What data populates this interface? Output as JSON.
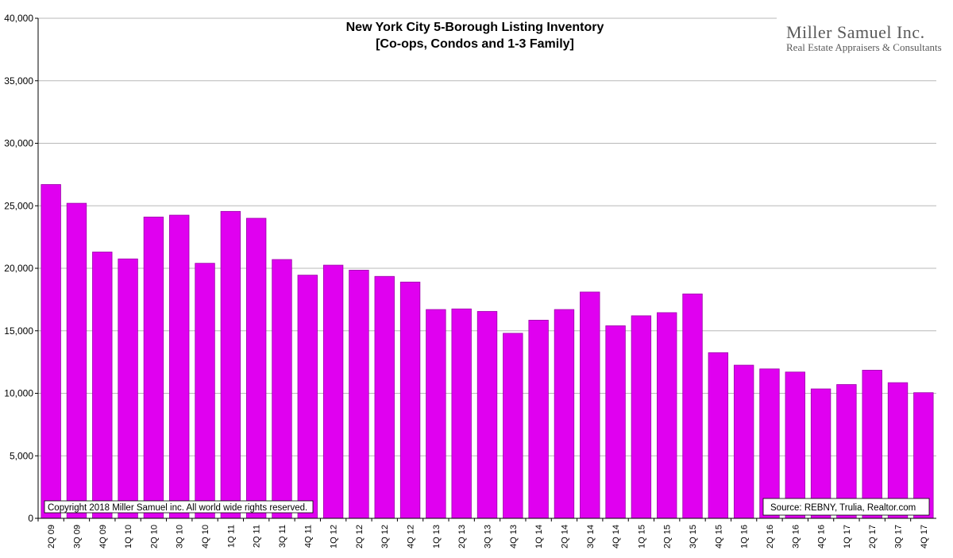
{
  "chart_data": {
    "type": "bar",
    "title_line1": "New York City 5-Borough Listing Inventory",
    "title_line2": "[Co-ops, Condos and 1-3 Family]",
    "xlabel": "",
    "ylabel": "",
    "ylim": [
      0,
      40000
    ],
    "yticks": [
      0,
      5000,
      10000,
      15000,
      20000,
      25000,
      30000,
      35000,
      40000
    ],
    "ytick_labels": [
      "0",
      "5,000",
      "10,000",
      "15,000",
      "20,000",
      "25,000",
      "30,000",
      "35,000",
      "40,000"
    ],
    "grid": true,
    "bar_color": "#E000F0",
    "bar_edge_color": "#9A00A8",
    "categories": [
      "2Q 09",
      "3Q 09",
      "4Q 09",
      "1Q 10",
      "2Q 10",
      "3Q 10",
      "4Q 10",
      "1Q 11",
      "2Q 11",
      "3Q 11",
      "4Q 11",
      "1Q 12",
      "2Q 12",
      "3Q 12",
      "4Q 12",
      "1Q 13",
      "2Q 13",
      "3Q 13",
      "4Q 13",
      "1Q 14",
      "2Q 14",
      "3Q 14",
      "4Q 14",
      "1Q 15",
      "2Q 15",
      "3Q 15",
      "4Q 15",
      "1Q 16",
      "2Q 16",
      "3Q 16",
      "4Q 16",
      "1Q 17",
      "2Q 17",
      "3Q 17",
      "4Q 17"
    ],
    "values": [
      26700,
      25200,
      21300,
      20750,
      24100,
      24250,
      20400,
      24550,
      24000,
      20700,
      19450,
      20250,
      19850,
      19350,
      18900,
      16700,
      16750,
      16550,
      14800,
      15850,
      16700,
      18100,
      15400,
      16200,
      16450,
      17950,
      13250,
      12250,
      11950,
      11700,
      10350,
      10700,
      11850,
      10850,
      10050
    ]
  },
  "branding": {
    "name": "Miller Samuel Inc.",
    "tagline": "Real Estate Appraisers & Consultants"
  },
  "notes": {
    "copyright": "Copyright 2018 Miller Samuel inc.  All world wide rights reserved.",
    "source": "Source: REBNY, Trulia, Realtor.com"
  }
}
